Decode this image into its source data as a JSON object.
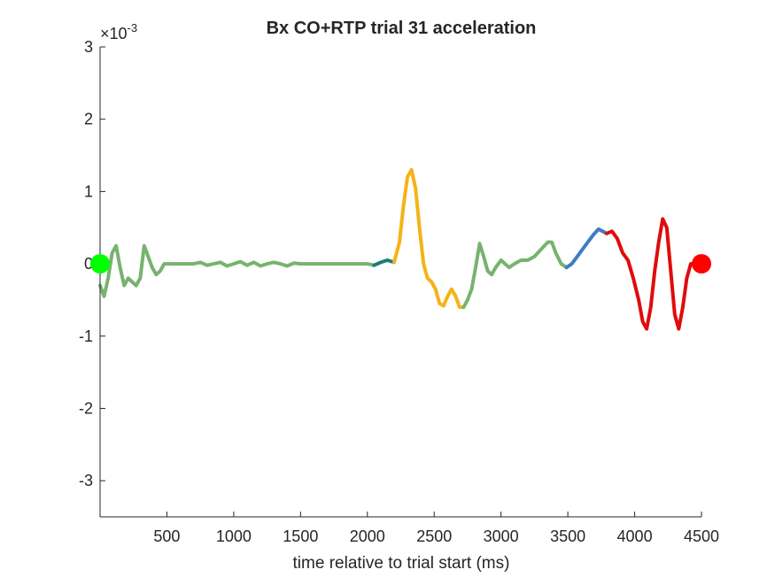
{
  "chart_data": {
    "type": "line",
    "title": "Bx  CO+RTP trial 31 acceleration",
    "xlabel": "time relative to trial start (ms)",
    "ylabel": "",
    "exponent_label": "×10",
    "exponent_power": "-3",
    "xlim": [
      0,
      4500
    ],
    "ylim": [
      -3.5,
      3.0
    ],
    "xticks": [
      500,
      1000,
      1500,
      2000,
      2500,
      3000,
      3500,
      4000,
      4500
    ],
    "yticks": [
      -3,
      -2,
      -1,
      0,
      1,
      2,
      3
    ],
    "grid": false,
    "series": [
      {
        "color": "#77b36e",
        "points": [
          [
            0,
            -0.3
          ],
          [
            30,
            -0.45
          ],
          [
            60,
            -0.2
          ],
          [
            90,
            0.15
          ],
          [
            120,
            0.25
          ],
          [
            150,
            -0.05
          ],
          [
            180,
            -0.3
          ],
          [
            210,
            -0.2
          ],
          [
            240,
            -0.25
          ],
          [
            270,
            -0.3
          ],
          [
            300,
            -0.2
          ],
          [
            330,
            0.25
          ],
          [
            360,
            0.1
          ],
          [
            390,
            -0.05
          ],
          [
            420,
            -0.15
          ],
          [
            450,
            -0.1
          ],
          [
            480,
            0.0
          ],
          [
            550,
            0.0
          ],
          [
            620,
            0.0
          ],
          [
            700,
            0.0
          ],
          [
            750,
            0.02
          ],
          [
            800,
            -0.02
          ],
          [
            850,
            0.0
          ],
          [
            900,
            0.02
          ],
          [
            950,
            -0.03
          ],
          [
            1000,
            0.0
          ],
          [
            1050,
            0.03
          ],
          [
            1100,
            -0.02
          ],
          [
            1150,
            0.02
          ],
          [
            1200,
            -0.03
          ],
          [
            1250,
            0.0
          ],
          [
            1300,
            0.02
          ],
          [
            1350,
            0.0
          ],
          [
            1400,
            -0.03
          ],
          [
            1450,
            0.01
          ],
          [
            1500,
            0.0
          ],
          [
            1600,
            0.0
          ],
          [
            1700,
            0.0
          ],
          [
            1800,
            0.0
          ],
          [
            1900,
            0.0
          ],
          [
            2000,
            0.0
          ],
          [
            2050,
            -0.02
          ]
        ]
      },
      {
        "color": "#1c7c78",
        "points": [
          [
            2050,
            -0.02
          ],
          [
            2100,
            0.02
          ],
          [
            2150,
            0.05
          ],
          [
            2200,
            0.02
          ]
        ]
      },
      {
        "color": "#f5b316",
        "points": [
          [
            2200,
            0.02
          ],
          [
            2240,
            0.3
          ],
          [
            2270,
            0.8
          ],
          [
            2300,
            1.2
          ],
          [
            2330,
            1.3
          ],
          [
            2360,
            1.05
          ],
          [
            2390,
            0.5
          ],
          [
            2420,
            0.0
          ],
          [
            2450,
            -0.2
          ],
          [
            2480,
            -0.25
          ],
          [
            2510,
            -0.35
          ],
          [
            2540,
            -0.55
          ],
          [
            2570,
            -0.58
          ],
          [
            2600,
            -0.45
          ],
          [
            2630,
            -0.35
          ],
          [
            2660,
            -0.45
          ],
          [
            2690,
            -0.6
          ],
          [
            2720,
            -0.6
          ]
        ]
      },
      {
        "color": "#77b36e",
        "points": [
          [
            2720,
            -0.6
          ],
          [
            2750,
            -0.5
          ],
          [
            2780,
            -0.35
          ],
          [
            2810,
            -0.05
          ],
          [
            2840,
            0.28
          ],
          [
            2870,
            0.1
          ],
          [
            2900,
            -0.1
          ],
          [
            2930,
            -0.15
          ],
          [
            2960,
            -0.05
          ],
          [
            3000,
            0.05
          ],
          [
            3030,
            0.0
          ],
          [
            3060,
            -0.05
          ],
          [
            3100,
            0.0
          ],
          [
            3150,
            0.05
          ],
          [
            3200,
            0.05
          ],
          [
            3250,
            0.1
          ],
          [
            3300,
            0.2
          ],
          [
            3350,
            0.3
          ],
          [
            3380,
            0.3
          ],
          [
            3410,
            0.15
          ],
          [
            3450,
            0.0
          ],
          [
            3490,
            -0.05
          ]
        ]
      },
      {
        "color": "#3f7cc4",
        "points": [
          [
            3490,
            -0.05
          ],
          [
            3530,
            0.0
          ],
          [
            3570,
            0.1
          ],
          [
            3610,
            0.2
          ],
          [
            3650,
            0.3
          ],
          [
            3690,
            0.4
          ],
          [
            3730,
            0.48
          ],
          [
            3760,
            0.45
          ],
          [
            3790,
            0.42
          ]
        ]
      },
      {
        "color": "#e00c0c",
        "points": [
          [
            3790,
            0.42
          ],
          [
            3830,
            0.45
          ],
          [
            3870,
            0.35
          ],
          [
            3910,
            0.15
          ],
          [
            3950,
            0.05
          ],
          [
            3990,
            -0.2
          ],
          [
            4030,
            -0.5
          ],
          [
            4060,
            -0.8
          ],
          [
            4090,
            -0.9
          ],
          [
            4120,
            -0.6
          ],
          [
            4150,
            -0.1
          ],
          [
            4180,
            0.3
          ],
          [
            4210,
            0.62
          ],
          [
            4240,
            0.5
          ],
          [
            4270,
            -0.1
          ],
          [
            4300,
            -0.7
          ],
          [
            4330,
            -0.9
          ],
          [
            4360,
            -0.6
          ],
          [
            4390,
            -0.2
          ],
          [
            4420,
            0.0
          ],
          [
            4460,
            0.0
          ],
          [
            4500,
            0.0
          ]
        ]
      }
    ],
    "markers": [
      {
        "x": 0,
        "y": 0,
        "color": "#00ff00"
      },
      {
        "x": 4500,
        "y": 0,
        "color": "#ff0000"
      }
    ]
  }
}
